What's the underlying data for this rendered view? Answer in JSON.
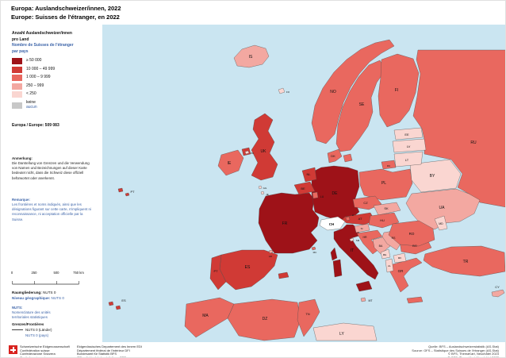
{
  "header": {
    "title_de": "Europa: Auslandschweizer/innen, 2022",
    "title_fr": "Europe: Suisses de l'étranger, en 2022"
  },
  "legend": {
    "heading_de1": "Anzahl Auslandschweizer/innen",
    "heading_de2": "pro Land",
    "heading_fr1": "Nombre de Suisses de l'étranger",
    "heading_fr2": "par pays",
    "classes": [
      {
        "id": "c1",
        "label": "≥ 50 000",
        "color": "#9e1218"
      },
      {
        "id": "c2",
        "label": "10 000 – 49 999",
        "color": "#d03a35"
      },
      {
        "id": "c3",
        "label": "1 000 – 9 999",
        "color": "#e9685f"
      },
      {
        "id": "c4",
        "label": "250 – 999",
        "color": "#f3a8a1"
      },
      {
        "id": "c5",
        "label": "< 250",
        "color": "#fad6d1"
      }
    ],
    "no_data": {
      "id": "none",
      "label_de": "keine",
      "label_fr": "aucun",
      "color": "#c8c8c8"
    },
    "total": "Europa / Europe: 509 083"
  },
  "notes": {
    "de_title": "Anmerkung:",
    "de_text": "Die Darstellung von Grenzen und die Verwendung von Namen und Bezeichnungen auf dieser Karte bedeutet nicht, dass die Schweiz diese offiziell befürwortet oder anerkennt.",
    "fr_title": "Remarque:",
    "fr_text": "Les frontières et noms indiqués, ainsi que les désignations figurant sur cette carte, n'impliquent ni reconnaissance, ni acceptation officielle par la Suisse."
  },
  "scalebar": {
    "ticks": [
      "0",
      "250",
      "500",
      "750 km"
    ]
  },
  "geo": {
    "label_de": "Raumgliederung:",
    "value_de": "NUTS 0",
    "label_fr": "Niveau géographique:",
    "value_fr": "NUTS 0",
    "nuts_title": "NUTS:",
    "nuts_line1": "Nomenclature des unités",
    "nuts_line2": "territoriales statistiques"
  },
  "borders": {
    "title": "Grenzen/Frontières",
    "line1": "NUTS 0 (Länder)",
    "line2": "NUTS 0 (pays)"
  },
  "colors": {
    "french_text": "#3b63a8",
    "swiss_flag_red": "#d8231f",
    "sea": "#cae5f1"
  },
  "map": {
    "sea_color": "#cae5f1",
    "switzerland_color": "#ffffff",
    "border_color": "#4a4a4a",
    "countries": [
      {
        "code": "RU",
        "class": "c3"
      },
      {
        "code": "NO",
        "class": "c3"
      },
      {
        "code": "SE",
        "class": "c3"
      },
      {
        "code": "FI",
        "class": "c3"
      },
      {
        "code": "IS",
        "class": "c4"
      },
      {
        "code": "UK",
        "class": "c2"
      },
      {
        "code": "IE",
        "class": "c3"
      },
      {
        "code": "FR",
        "class": "c1"
      },
      {
        "code": "ES",
        "class": "c2"
      },
      {
        "code": "PT",
        "class": "c2"
      },
      {
        "code": "DE",
        "class": "c1"
      },
      {
        "code": "DK",
        "class": "c3"
      },
      {
        "code": "NL",
        "class": "c2"
      },
      {
        "code": "BE",
        "class": "c2"
      },
      {
        "code": "LU",
        "class": "c3"
      },
      {
        "code": "PL",
        "class": "c3"
      },
      {
        "code": "CZ",
        "class": "c3"
      },
      {
        "code": "AT",
        "class": "c2"
      },
      {
        "code": "IT",
        "class": "c1"
      },
      {
        "code": "CH",
        "class": "ch"
      },
      {
        "code": "LI",
        "class": "c3"
      },
      {
        "code": "SK",
        "class": "c4"
      },
      {
        "code": "HU",
        "class": "c3"
      },
      {
        "code": "SI",
        "class": "c4"
      },
      {
        "code": "HR",
        "class": "c3"
      },
      {
        "code": "BA",
        "class": "c4"
      },
      {
        "code": "RS",
        "class": "c4"
      },
      {
        "code": "BG",
        "class": "c3"
      },
      {
        "code": "GR",
        "class": "c3"
      },
      {
        "code": "TR",
        "class": "c3"
      },
      {
        "code": "ME",
        "class": "c5"
      },
      {
        "code": "MK",
        "class": "c5"
      },
      {
        "code": "AL",
        "class": "c5"
      },
      {
        "code": "UA",
        "class": "c4"
      },
      {
        "code": "BY",
        "class": "c5"
      },
      {
        "code": "RO",
        "class": "c3"
      },
      {
        "code": "MD",
        "class": "c5"
      },
      {
        "code": "LT",
        "class": "c5"
      },
      {
        "code": "LV",
        "class": "c5"
      },
      {
        "code": "EE",
        "class": "c5"
      },
      {
        "code": "CY",
        "class": "c4"
      },
      {
        "code": "MT",
        "class": "c4"
      },
      {
        "code": "SM",
        "class": "c5"
      },
      {
        "code": "MC",
        "class": "c3"
      },
      {
        "code": "AD",
        "class": "c4"
      },
      {
        "code": "FO",
        "class": "c5"
      },
      {
        "code": "GG",
        "class": "c5"
      },
      {
        "code": "JE",
        "class": "c5"
      },
      {
        "code": "IM",
        "class": "c5"
      },
      {
        "code": "MA",
        "class": "c3"
      },
      {
        "code": "DZ",
        "class": "c3"
      },
      {
        "code": "TN",
        "class": "c3"
      },
      {
        "code": "LY",
        "class": "c5"
      }
    ]
  },
  "footer": {
    "org_lines": [
      "Schweizerische Eidgenossenschaft",
      "Confédération suisse",
      "Confederazione Svizzera",
      "Confederaziun svizra"
    ],
    "dept_lines": [
      "Eidgenössisches Departement des Innern EDI",
      "Département fédéral de l'intérieur DFI",
      "Bundesamt für Statistik BFS",
      "Office fédéral de la statistique OFS"
    ],
    "source_lines": [
      "Quelle: BFS – Auslandschweizerstatistik (AS-Stat)",
      "Source: OFS – Statistique des Suisses de l'étranger (AS-Stat)",
      "© BFS, ThemaKart, Neuchâtel 2023",
      "© OFS, ThemaKart, Neuchâtel 2023"
    ]
  }
}
